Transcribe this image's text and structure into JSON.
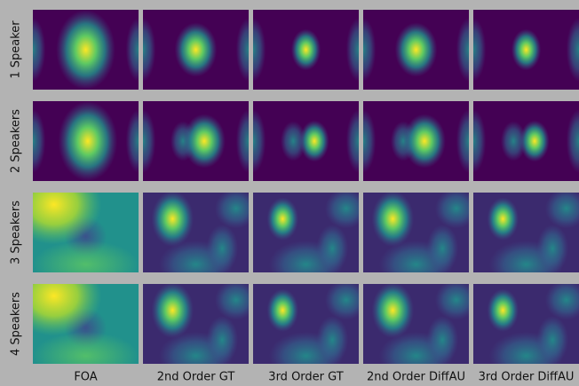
{
  "columns": [
    "FOA",
    "2nd Order GT",
    "3rd Order GT",
    "2nd Order DiffAU",
    "3rd Order DiffAU"
  ],
  "rows": [
    "1 Speaker",
    "2 Speakers",
    "3 Speakers",
    "4 Speakers"
  ]
}
